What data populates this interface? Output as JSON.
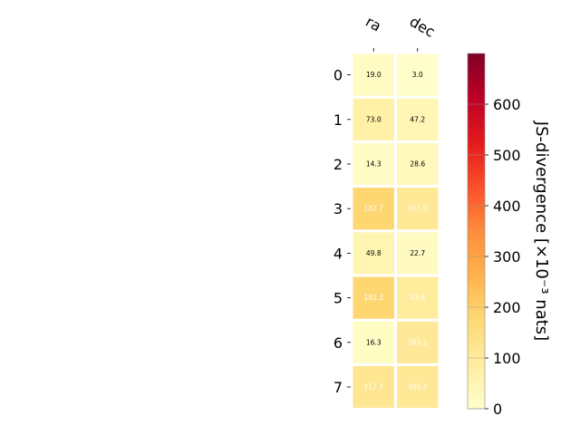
{
  "chart_data": {
    "type": "heatmap",
    "columns": [
      "ra",
      "dec"
    ],
    "rows": [
      "0",
      "1",
      "2",
      "3",
      "4",
      "5",
      "6",
      "7"
    ],
    "values": [
      [
        19.0,
        3.0
      ],
      [
        73.0,
        47.2
      ],
      [
        14.3,
        28.6
      ],
      [
        182.7,
        107.9
      ],
      [
        49.8,
        22.7
      ],
      [
        182.3,
        92.8
      ],
      [
        16.3,
        103.1
      ],
      [
        117.7,
        108.2
      ]
    ],
    "cell_labels": [
      [
        "19.0",
        "3.0"
      ],
      [
        "73.0",
        "47.2"
      ],
      [
        "14.3",
        "28.6"
      ],
      [
        "182.7",
        "107.9"
      ],
      [
        "49.8",
        "22.7"
      ],
      [
        "182.3",
        "92.8"
      ],
      [
        "16.3",
        "103.1"
      ],
      [
        "117.7",
        "108.2"
      ]
    ],
    "colorbar": {
      "label": "JS-divergence [×10⁻³ nats]",
      "range": [
        0,
        700
      ],
      "ticks": [
        0,
        100,
        200,
        300,
        400,
        500,
        600
      ],
      "colormap": "YlOrRd"
    },
    "text_color_dark": "#000000",
    "text_color_light": "#ffffff",
    "light_text_threshold": 90
  }
}
